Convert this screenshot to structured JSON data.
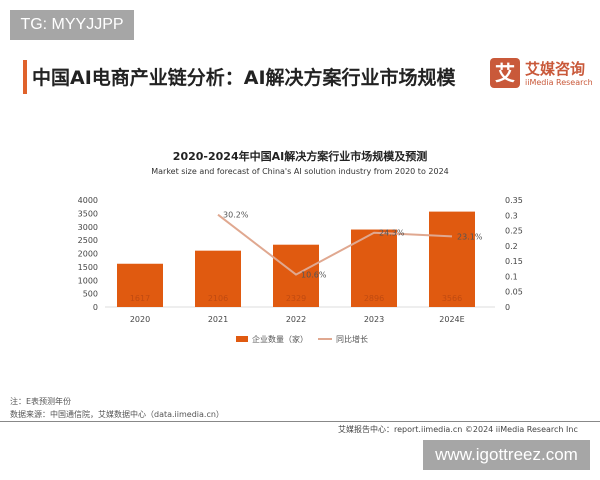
{
  "watermark_top": "TG: MYYJJPP",
  "header": {
    "title": "中国AI电商产业链分析：AI解决方案行业市场规模",
    "logo_mark": "艾",
    "logo_cn": "艾媒咨询",
    "logo_en": "iiMedia Research"
  },
  "chart_data": {
    "type": "bar+line",
    "title": "2020-2024年中国AI解决方案行业市场规模及预测",
    "subtitle": "Market size and forecast of China's AI solution industry from 2020 to 2024",
    "categories": [
      "2020",
      "2021",
      "2022",
      "2023",
      "2024E"
    ],
    "series": [
      {
        "name": "企业数量（家）",
        "type": "bar",
        "axis": "left",
        "values": [
          1617,
          2106,
          2329,
          2896,
          3566
        ],
        "color": "#e05a10"
      },
      {
        "name": "同比增长",
        "type": "line",
        "axis": "right",
        "values": [
          null,
          0.302,
          0.106,
          0.243,
          0.231
        ],
        "labels": [
          "",
          "30.2%",
          "10.6%",
          "24.3%",
          "23.1%"
        ],
        "color": "#e0a890"
      }
    ],
    "y_left": {
      "range": [
        0,
        4000
      ],
      "ticks": [
        "0",
        "500",
        "1000",
        "1500",
        "2000",
        "2500",
        "3000",
        "3500",
        "4000"
      ]
    },
    "y_right": {
      "range": [
        0,
        0.35
      ],
      "ticks": [
        "0",
        "0.05",
        "0.1",
        "0.15",
        "0.2",
        "0.25",
        "0.3",
        "0.35"
      ]
    },
    "grid": false,
    "legend": "bottom"
  },
  "notes": {
    "note": "注：E表预测年份",
    "source": "数据来源：中国通信院，艾媒数据中心（data.iimedia.cn）"
  },
  "footer": "艾媒报告中心：report.iimedia.cn    ©2024  iiMedia Research  Inc",
  "watermark_bottom": "www.igottreez.com"
}
